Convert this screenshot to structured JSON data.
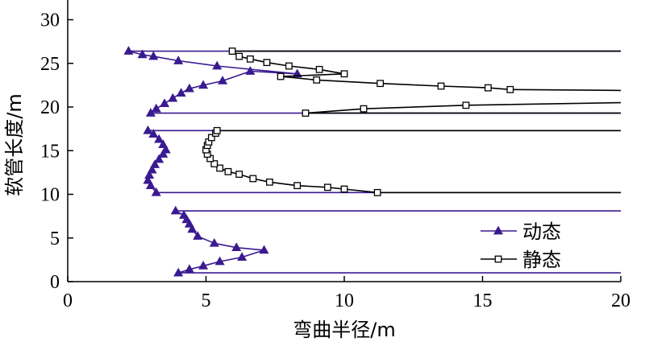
{
  "chart_data": {
    "type": "line",
    "title": "",
    "xlabel": "弯曲半径/m",
    "ylabel": "软管长度/m",
    "xlim": [
      0,
      20
    ],
    "ylim": [
      0,
      32
    ],
    "x_ticks": [
      0,
      5,
      10,
      15,
      20
    ],
    "y_ticks": [
      0,
      5,
      10,
      15,
      20,
      25,
      30
    ],
    "legend_position": "bottom-right",
    "series": [
      {
        "name": "动态",
        "color": "#3a1a90",
        "marker": "triangle-filled",
        "segments": [
          [
            [
              20,
              1.0
            ],
            [
              4.0,
              1.0
            ],
            [
              4.4,
              1.4
            ],
            [
              4.9,
              1.8
            ],
            [
              5.5,
              2.3
            ],
            [
              6.3,
              2.8
            ],
            [
              7.1,
              3.6
            ],
            [
              6.1,
              3.9
            ],
            [
              5.3,
              4.4
            ],
            [
              4.7,
              5.2
            ],
            [
              4.5,
              6.0
            ],
            [
              4.4,
              6.6
            ],
            [
              4.3,
              7.1
            ],
            [
              4.2,
              7.6
            ],
            [
              3.9,
              8.1
            ],
            [
              20,
              8.1
            ]
          ],
          [
            [
              20,
              10.2
            ],
            [
              3.2,
              10.2
            ],
            [
              3.0,
              11.0
            ],
            [
              2.9,
              11.6
            ],
            [
              2.95,
              12.2
            ],
            [
              3.05,
              12.8
            ],
            [
              3.15,
              13.4
            ],
            [
              3.3,
              14.0
            ],
            [
              3.45,
              14.6
            ],
            [
              3.55,
              15.1
            ],
            [
              3.45,
              15.7
            ],
            [
              3.3,
              16.3
            ],
            [
              3.1,
              16.9
            ],
            [
              2.9,
              17.3
            ],
            [
              20,
              17.3
            ]
          ],
          [
            [
              20,
              19.3
            ],
            [
              3.0,
              19.3
            ],
            [
              3.2,
              19.8
            ],
            [
              3.5,
              20.4
            ],
            [
              3.8,
              21.0
            ],
            [
              4.1,
              21.6
            ],
            [
              4.4,
              22.1
            ],
            [
              4.9,
              22.5
            ],
            [
              5.6,
              23.0
            ],
            [
              6.6,
              24.1
            ],
            [
              8.3,
              23.8
            ],
            [
              5.4,
              24.7
            ],
            [
              4.0,
              25.3
            ],
            [
              3.1,
              25.8
            ],
            [
              2.7,
              26.0
            ],
            [
              2.2,
              26.4
            ],
            [
              20,
              26.4
            ]
          ]
        ]
      },
      {
        "name": "静态",
        "color": "#000000",
        "marker": "square-open",
        "segments": [
          [
            [
              20,
              10.2
            ],
            [
              11.2,
              10.2
            ],
            [
              10.0,
              10.6
            ],
            [
              9.4,
              10.8
            ],
            [
              8.3,
              11.0
            ],
            [
              7.3,
              11.4
            ],
            [
              6.7,
              11.8
            ],
            [
              6.2,
              12.3
            ],
            [
              5.8,
              12.6
            ],
            [
              5.5,
              13.0
            ],
            [
              5.3,
              13.5
            ],
            [
              5.15,
              14.1
            ],
            [
              5.05,
              14.6
            ],
            [
              5.0,
              15.1
            ],
            [
              5.05,
              15.6
            ],
            [
              5.1,
              16.0
            ],
            [
              5.2,
              16.5
            ],
            [
              5.35,
              17.0
            ],
            [
              5.4,
              17.3
            ],
            [
              20,
              17.3
            ]
          ],
          [
            [
              20,
              19.3
            ],
            [
              8.6,
              19.3
            ],
            [
              10.7,
              19.8
            ],
            [
              14.4,
              20.2
            ],
            [
              20,
              20.5
            ]
          ],
          [
            [
              20,
              21.9
            ],
            [
              16.0,
              22.0
            ],
            [
              15.2,
              22.2
            ],
            [
              13.5,
              22.4
            ],
            [
              11.3,
              22.7
            ],
            [
              9.0,
              23.1
            ],
            [
              7.7,
              23.5
            ],
            [
              10.0,
              23.8
            ],
            [
              9.1,
              24.3
            ],
            [
              8.0,
              24.7
            ],
            [
              7.2,
              25.1
            ],
            [
              6.6,
              25.5
            ],
            [
              6.2,
              25.8
            ],
            [
              5.95,
              26.4
            ],
            [
              20,
              26.4
            ]
          ]
        ]
      }
    ]
  }
}
